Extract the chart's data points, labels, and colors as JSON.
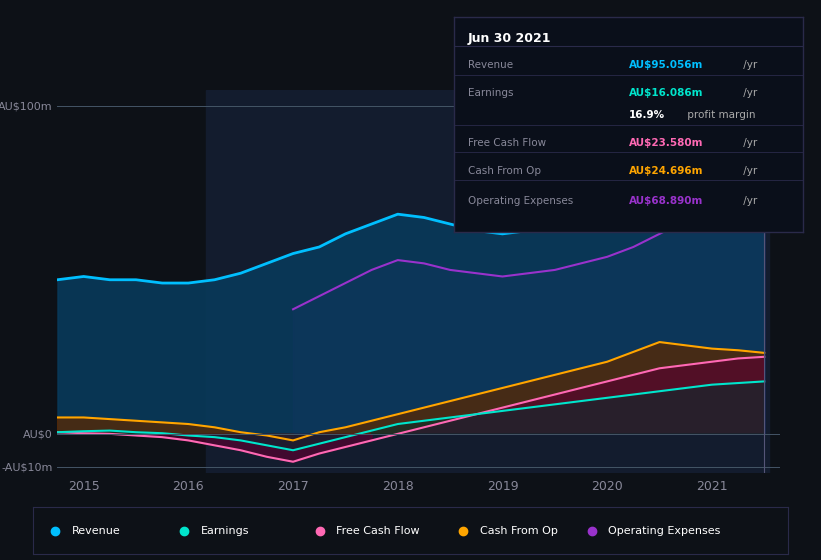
{
  "background_color": "#0d1117",
  "plot_bg_color": "#0d1117",
  "years": [
    2014.75,
    2015.0,
    2015.25,
    2015.5,
    2015.75,
    2016.0,
    2016.25,
    2016.5,
    2016.75,
    2017.0,
    2017.25,
    2017.5,
    2017.75,
    2018.0,
    2018.25,
    2018.5,
    2018.75,
    2019.0,
    2019.25,
    2019.5,
    2019.75,
    2020.0,
    2020.25,
    2020.5,
    2020.75,
    2021.0,
    2021.25,
    2021.5
  ],
  "revenue": [
    47,
    48,
    47,
    47,
    46,
    46,
    47,
    49,
    52,
    55,
    57,
    61,
    64,
    67,
    66,
    64,
    62,
    61,
    62,
    64,
    67,
    70,
    74,
    79,
    84,
    88,
    93,
    95
  ],
  "earnings": [
    0.5,
    0.8,
    1.0,
    0.5,
    0.2,
    -0.5,
    -1.0,
    -2.0,
    -3.5,
    -5.0,
    -3.0,
    -1.0,
    1.0,
    3.0,
    4.0,
    5.0,
    6.0,
    7.0,
    8.0,
    9.0,
    10.0,
    11.0,
    12.0,
    13.0,
    14.0,
    15.0,
    15.5,
    16.0
  ],
  "free_cash_flow": [
    0.5,
    0.2,
    0.0,
    -0.5,
    -1.0,
    -2.0,
    -3.5,
    -5.0,
    -7.0,
    -8.5,
    -6.0,
    -4.0,
    -2.0,
    0.0,
    2.0,
    4.0,
    6.0,
    8.0,
    10.0,
    12.0,
    14.0,
    16.0,
    18.0,
    20.0,
    21.0,
    22.0,
    23.0,
    23.5
  ],
  "cash_from_op": [
    5.0,
    5.0,
    4.5,
    4.0,
    3.5,
    3.0,
    2.0,
    0.5,
    -0.5,
    -2.0,
    0.5,
    2.0,
    4.0,
    6.0,
    8.0,
    10.0,
    12.0,
    14.0,
    16.0,
    18.0,
    20.0,
    22.0,
    25.0,
    28.0,
    27.0,
    26.0,
    25.5,
    24.7
  ],
  "op_expenses": [
    0,
    0,
    0,
    0,
    0,
    0,
    0,
    0,
    0,
    38,
    42,
    46,
    50,
    53,
    52,
    50,
    49,
    48,
    49,
    50,
    52,
    54,
    57,
    61,
    65,
    67,
    69,
    68.9
  ],
  "revenue_color": "#00bfff",
  "earnings_color": "#00e5cc",
  "fcf_color": "#ff69b4",
  "cashop_color": "#ffa500",
  "opexp_color": "#9932cc",
  "ylim": [
    -12,
    105
  ],
  "xlim": [
    2014.75,
    2021.65
  ],
  "yticks": [
    -10,
    0,
    100
  ],
  "ytick_labels": [
    "-AU$10m",
    "AU$0",
    "AU$100m"
  ],
  "xticks": [
    2015,
    2016,
    2017,
    2018,
    2019,
    2020,
    2021
  ],
  "legend_items": [
    {
      "label": "Revenue",
      "color": "#00bfff"
    },
    {
      "label": "Earnings",
      "color": "#00e5cc"
    },
    {
      "label": "Free Cash Flow",
      "color": "#ff69b4"
    },
    {
      "label": "Cash From Op",
      "color": "#ffa500"
    },
    {
      "label": "Operating Expenses",
      "color": "#9932cc"
    }
  ],
  "tooltip_title": "Jun 30 2021",
  "tooltip_rows": [
    {
      "label": "Revenue",
      "value": "AU$95.056m",
      "suffix": " /yr",
      "value_color": "#00bfff",
      "sep_after": false
    },
    {
      "label": "Earnings",
      "value": "AU$16.086m",
      "suffix": " /yr",
      "value_color": "#00e5cc",
      "sep_after": false
    },
    {
      "label": "",
      "value": "16.9%",
      "suffix": " profit margin",
      "value_color": "#ffffff",
      "sep_after": true
    },
    {
      "label": "Free Cash Flow",
      "value": "AU$23.580m",
      "suffix": " /yr",
      "value_color": "#ff69b4",
      "sep_after": true
    },
    {
      "label": "Cash From Op",
      "value": "AU$24.696m",
      "suffix": " /yr",
      "value_color": "#ffa500",
      "sep_after": true
    },
    {
      "label": "Operating Expenses",
      "value": "AU$68.890m",
      "suffix": " /yr",
      "value_color": "#9932cc",
      "sep_after": false
    }
  ]
}
